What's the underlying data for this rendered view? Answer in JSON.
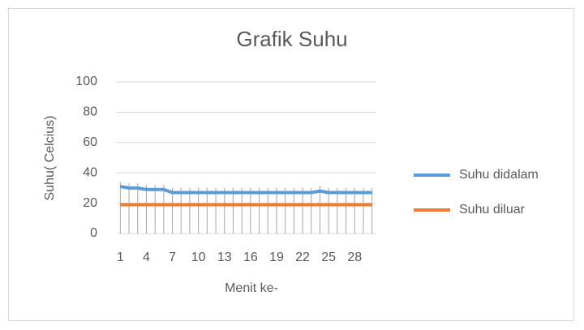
{
  "chart_data": {
    "type": "line",
    "title": "Grafik Suhu",
    "x_label": "Menit ke-",
    "y_label": "Suhu( Celcius)",
    "categories": [
      1,
      null,
      null,
      4,
      null,
      null,
      7,
      null,
      null,
      10,
      null,
      null,
      13,
      null,
      null,
      16,
      null,
      null,
      19,
      null,
      null,
      22,
      null,
      null,
      25,
      null,
      null,
      28,
      null,
      null
    ],
    "series": [
      {
        "name": "Suhu didalam",
        "color": "#5b9bd5",
        "values": [
          31,
          30,
          30,
          29,
          29,
          29,
          27,
          27,
          27,
          27,
          27,
          27,
          27,
          27,
          27,
          27,
          27,
          27,
          27,
          27,
          27,
          27,
          27,
          28,
          27,
          27,
          27,
          27,
          27,
          27
        ]
      },
      {
        "name": "Suhu diluar",
        "color": "#ed7d31",
        "values": [
          19,
          19,
          19,
          19,
          19,
          19,
          19,
          19,
          19,
          19,
          19,
          19,
          19,
          19,
          19,
          19,
          19,
          19,
          19,
          19,
          19,
          19,
          19,
          19,
          19,
          19,
          19,
          19,
          19,
          19
        ]
      }
    ],
    "ylim": [
      0,
      100
    ],
    "yticks": [
      0,
      20,
      40,
      60,
      80,
      100
    ],
    "grid": true,
    "legend": "right"
  }
}
